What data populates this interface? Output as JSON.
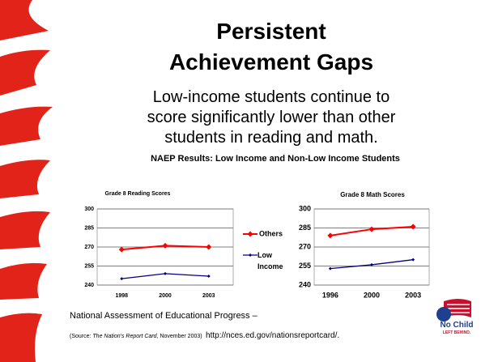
{
  "slide": {
    "title": "Persistent Achievement Gaps",
    "subtitle": "Low-income students continue to score significantly lower than other students in reading and math.",
    "heading": "NAEP Results:  Low Income and Non-Low Income Students",
    "footnote": "National Assessment of Educational Progress –",
    "source_open": "(Source: ",
    "source_title": "The Nation's Report Card",
    "source_close": ", November 2003)",
    "url": "http://nces.ed.gov/nationsreportcard/.",
    "logo_top": "No Child",
    "logo_bottom": "LEFT BEHIND."
  },
  "chart_data": [
    {
      "type": "line",
      "title": "Grade 8 Reading Scores",
      "categories": [
        "1998",
        "2000",
        "2003"
      ],
      "series": [
        {
          "name": "Others",
          "color": "#ff0000",
          "values": [
            268,
            271,
            270
          ]
        },
        {
          "name": "Low Income",
          "color": "#000080",
          "values": [
            245,
            249,
            247
          ]
        }
      ],
      "ylim": [
        240,
        300
      ],
      "yticks": [
        240,
        255,
        270,
        285,
        300
      ],
      "grid": true
    },
    {
      "type": "line",
      "title": "Grade 8 Math Scores",
      "categories": [
        "1996",
        "2000",
        "2003"
      ],
      "series": [
        {
          "color": "#ff0000",
          "values": [
            279,
            284,
            286
          ]
        },
        {
          "color": "#000080",
          "values": [
            253,
            256,
            260
          ]
        }
      ],
      "ylim": [
        240,
        300
      ],
      "yticks": [
        240,
        255,
        270,
        285,
        300
      ],
      "grid": true
    }
  ]
}
